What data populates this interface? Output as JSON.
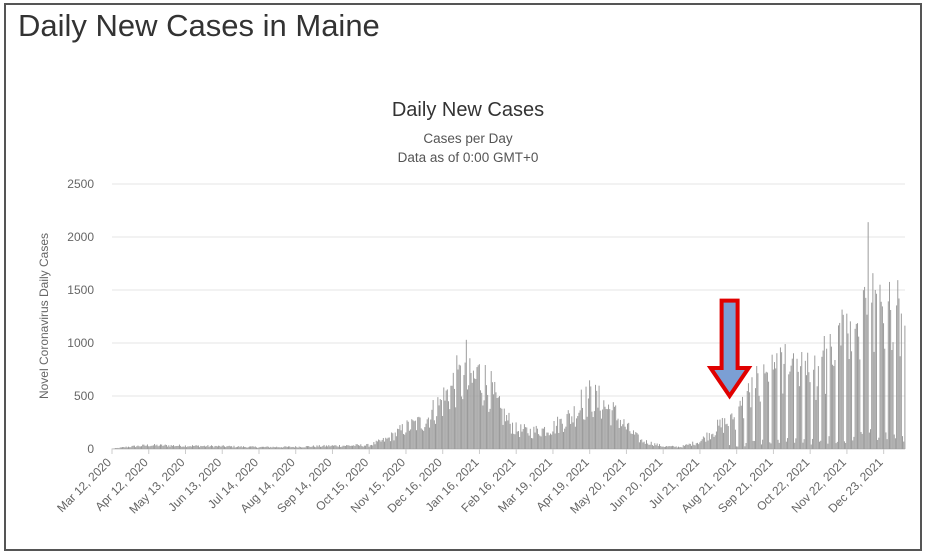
{
  "page": {
    "title": "Daily New Cases in Maine"
  },
  "chart_data": {
    "type": "bar",
    "title": "Daily New Cases",
    "subtitle": "Cases per Day",
    "subtitle2": "Data as of 0:00 GMT+0",
    "ylabel": "Novel Coronavirus Daily Cases",
    "xlabel": "",
    "ylim": [
      0,
      2500
    ],
    "yticks": [
      "0",
      "500",
      "1000",
      "1500",
      "2000",
      "2500"
    ],
    "x_start": "2020-03-12",
    "x_end": "2022-01-10",
    "xtick_labels": [
      "Mar 12, 2020",
      "Apr 12, 2020",
      "May 13, 2020",
      "Jun 13, 2020",
      "Jul 14, 2020",
      "Aug 14, 2020",
      "Sep 14, 2020",
      "Oct 15, 2020",
      "Nov 15, 2020",
      "Dec 16, 2020",
      "Jan 16, 2021",
      "Feb 16, 2021",
      "Mar 19, 2021",
      "Apr 19, 2021",
      "May 20, 2021",
      "Jun 20, 2021",
      "Jul 21, 2021",
      "Aug 21, 2021",
      "Sep 21, 2021",
      "Oct 22, 2021",
      "Nov 22, 2021",
      "Dec 23, 2021"
    ],
    "grid": true,
    "bar_color": "#999999",
    "trend": [
      [
        "2020-03-12",
        2
      ],
      [
        "2020-03-25",
        20
      ],
      [
        "2020-04-12",
        35
      ],
      [
        "2020-05-13",
        30
      ],
      [
        "2020-06-13",
        25
      ],
      [
        "2020-07-14",
        18
      ],
      [
        "2020-08-14",
        20
      ],
      [
        "2020-09-14",
        30
      ],
      [
        "2020-10-15",
        35
      ],
      [
        "2020-10-30",
        90
      ],
      [
        "2020-11-15",
        200
      ],
      [
        "2020-12-01",
        260
      ],
      [
        "2020-12-16",
        450
      ],
      [
        "2020-12-29",
        650
      ],
      [
        "2021-01-05",
        600
      ],
      [
        "2021-01-16",
        680
      ],
      [
        "2021-01-24",
        580
      ],
      [
        "2021-02-02",
        360
      ],
      [
        "2021-02-16",
        180
      ],
      [
        "2021-03-01",
        160
      ],
      [
        "2021-03-19",
        200
      ],
      [
        "2021-04-05",
        320
      ],
      [
        "2021-04-19",
        480
      ],
      [
        "2021-04-30",
        420
      ],
      [
        "2021-05-10",
        330
      ],
      [
        "2021-05-20",
        200
      ],
      [
        "2021-06-01",
        80
      ],
      [
        "2021-06-20",
        25
      ],
      [
        "2021-07-05",
        20
      ],
      [
        "2021-07-21",
        70
      ],
      [
        "2021-08-05",
        200
      ],
      [
        "2021-08-21",
        300
      ],
      [
        "2021-09-05",
        560
      ],
      [
        "2021-09-21",
        720
      ],
      [
        "2021-10-05",
        700
      ],
      [
        "2021-10-22",
        650
      ],
      [
        "2021-11-05",
        820
      ],
      [
        "2021-11-22",
        1000
      ],
      [
        "2021-12-05",
        1100
      ],
      [
        "2021-12-15",
        1450
      ],
      [
        "2021-12-23",
        1300
      ],
      [
        "2022-01-01",
        1250
      ],
      [
        "2022-01-10",
        1150
      ]
    ],
    "spikes": [
      [
        "2021-01-05",
        1030
      ],
      [
        "2020-12-29",
        750
      ],
      [
        "2021-01-16",
        800
      ],
      [
        "2021-04-12",
        560
      ],
      [
        "2021-12-10",
        2140
      ],
      [
        "2021-12-20",
        1550
      ],
      [
        "2021-12-16",
        1500
      ],
      [
        "2022-01-05",
        1420
      ],
      [
        "2021-09-23",
        760
      ],
      [
        "2021-10-01",
        990
      ],
      [
        "2021-11-23",
        1090
      ],
      [
        "2021-11-30",
        1180
      ]
    ],
    "annotation": {
      "type": "arrow-down",
      "date": "2021-08-15",
      "value": 1400,
      "to_value": 500,
      "fill": "#7b9fd4",
      "stroke": "#e00000"
    }
  }
}
